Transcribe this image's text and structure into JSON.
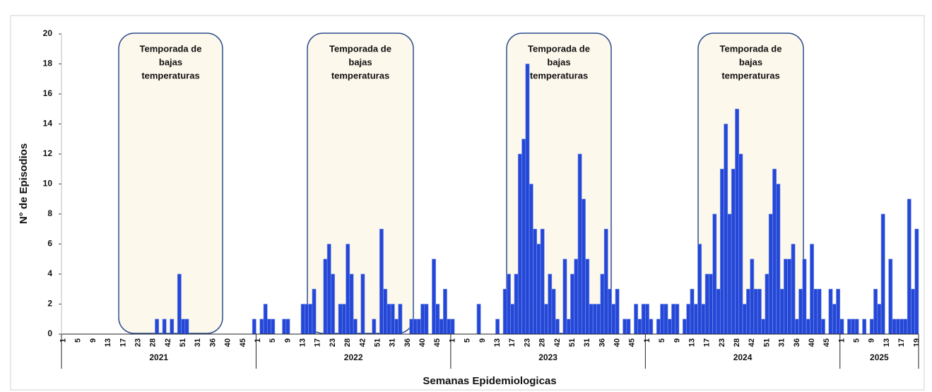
{
  "chart_data": {
    "type": "bar",
    "x_label": "Semanas Epidemiologicas",
    "y_label": "N° de Episodios",
    "color": "#2447d6",
    "ylim": [
      0,
      20
    ],
    "yticks": [
      0,
      2,
      4,
      6,
      8,
      10,
      12,
      14,
      16,
      18,
      20
    ],
    "years": [
      "2021",
      "2022",
      "2023",
      "2024",
      "2025"
    ],
    "annotations": [
      [
        "Temporada de",
        "bajas",
        "temperaturas"
      ],
      [
        "Temporada de",
        "bajas",
        "temperaturas"
      ],
      [
        "Temporada de",
        "bajas",
        "temperaturas"
      ],
      [
        "Temporada de",
        "bajas",
        "temperaturas"
      ]
    ],
    "categories": [
      "1",
      null,
      null,
      null,
      "5",
      null,
      null,
      null,
      "9",
      null,
      null,
      null,
      "13",
      null,
      null,
      null,
      "17",
      null,
      null,
      null,
      "23",
      null,
      null,
      null,
      "28",
      null,
      null,
      null,
      "42",
      null,
      null,
      null,
      "51",
      null,
      null,
      null,
      "31",
      null,
      null,
      null,
      "36",
      null,
      null,
      null,
      "40",
      null,
      null,
      null,
      "45",
      null,
      null,
      null,
      "1",
      null,
      null,
      null,
      "5",
      null,
      null,
      null,
      "9",
      null,
      null,
      null,
      "13",
      null,
      null,
      null,
      "17",
      null,
      null,
      null,
      "23",
      null,
      null,
      null,
      "28",
      null,
      null,
      null,
      "42",
      null,
      null,
      null,
      "51",
      null,
      null,
      null,
      "31",
      null,
      null,
      null,
      "36",
      null,
      null,
      null,
      "40",
      null,
      null,
      null,
      "45",
      null,
      null,
      null,
      "1",
      null,
      null,
      null,
      "5",
      null,
      null,
      null,
      "9",
      null,
      null,
      null,
      "13",
      null,
      null,
      null,
      "17",
      null,
      null,
      null,
      "23",
      null,
      null,
      null,
      "28",
      null,
      null,
      null,
      "42",
      null,
      null,
      null,
      "51",
      null,
      null,
      null,
      "31",
      null,
      null,
      null,
      "36",
      null,
      null,
      null,
      "40",
      null,
      null,
      null,
      "45",
      null,
      null,
      null,
      "1",
      null,
      null,
      null,
      "5",
      null,
      null,
      null,
      "9",
      null,
      null,
      null,
      "13",
      null,
      null,
      null,
      "17",
      null,
      null,
      null,
      "23",
      null,
      null,
      null,
      "28",
      null,
      null,
      null,
      "42",
      null,
      null,
      null,
      "51",
      null,
      null,
      null,
      "31",
      null,
      null,
      null,
      "36",
      null,
      null,
      null,
      "40",
      null,
      null,
      null,
      "45",
      null,
      null,
      null,
      "1",
      null,
      null,
      null,
      "5",
      null,
      null,
      null,
      "9",
      null,
      null,
      null,
      "13",
      null,
      null,
      null,
      "17",
      null,
      null,
      null,
      "19"
    ],
    "values": [
      0,
      0,
      0,
      0,
      0,
      0,
      0,
      0,
      0,
      0,
      0,
      0,
      0,
      0,
      0,
      0,
      0,
      0,
      0,
      0,
      0,
      0,
      0,
      0,
      0,
      1,
      0,
      1,
      0,
      1,
      0,
      4,
      1,
      1,
      0,
      0,
      0,
      0,
      0,
      0,
      0,
      0,
      0,
      0,
      0,
      0,
      0,
      0,
      0,
      0,
      0,
      1,
      0,
      1,
      2,
      1,
      1,
      0,
      0,
      1,
      1,
      0,
      0,
      0,
      2,
      2,
      2,
      3,
      0,
      0,
      5,
      6,
      4,
      0,
      2,
      2,
      6,
      4,
      1,
      0,
      4,
      0,
      0,
      1,
      0,
      7,
      3,
      2,
      2,
      1,
      2,
      0,
      0,
      1,
      1,
      1,
      2,
      2,
      0,
      5,
      2,
      1,
      3,
      1,
      1,
      0,
      0,
      0,
      0,
      0,
      0,
      2,
      0,
      0,
      0,
      0,
      1,
      0,
      3,
      4,
      2,
      4,
      12,
      13,
      18,
      10,
      7,
      6,
      7,
      2,
      4,
      3,
      1,
      0,
      5,
      1,
      4,
      5,
      12,
      9,
      5,
      2,
      2,
      2,
      4,
      7,
      3,
      2,
      3,
      0,
      1,
      1,
      0,
      2,
      1,
      2,
      2,
      1,
      0,
      1,
      2,
      2,
      1,
      2,
      2,
      0,
      1,
      2,
      3,
      2,
      6,
      2,
      4,
      4,
      8,
      3,
      11,
      14,
      8,
      11,
      15,
      12,
      2,
      3,
      5,
      3,
      3,
      1,
      4,
      8,
      11,
      10,
      3,
      5,
      5,
      6,
      1,
      3,
      5,
      1,
      6,
      3,
      3,
      1,
      0,
      3,
      2,
      3,
      1,
      0,
      1,
      1,
      1,
      0,
      1,
      0,
      1,
      3,
      2,
      8,
      0,
      5,
      1,
      1,
      1,
      1,
      9,
      3,
      7
    ]
  }
}
